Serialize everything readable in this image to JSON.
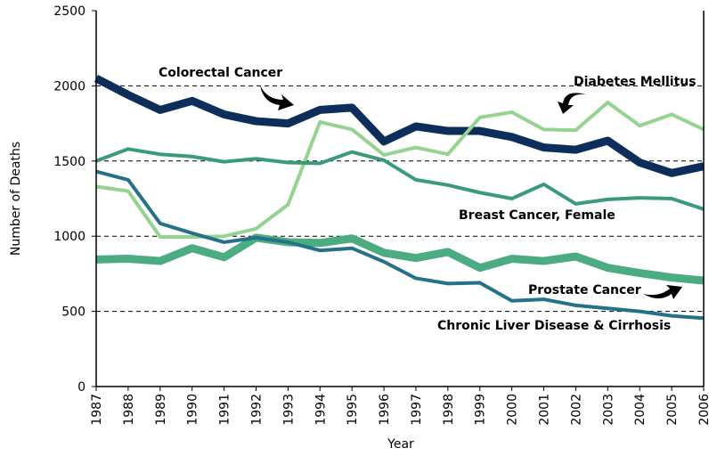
{
  "chart_data": {
    "type": "line",
    "x_label": "Year",
    "y_label": "Number of Deaths",
    "x": [
      1987,
      1988,
      1989,
      1990,
      1991,
      1992,
      1993,
      1994,
      1995,
      1996,
      1997,
      1998,
      1999,
      2000,
      2001,
      2002,
      2003,
      2004,
      2005,
      2006
    ],
    "xlim": [
      1987,
      2006
    ],
    "xticks": [
      1987,
      1988,
      1989,
      1990,
      1991,
      1992,
      1993,
      1994,
      1995,
      1996,
      1997,
      1998,
      1999,
      2000,
      2001,
      2002,
      2003,
      2004,
      2005,
      2006
    ],
    "ylim": [
      0,
      2500
    ],
    "yticks": [
      0,
      500,
      1000,
      1500,
      2000,
      2500
    ],
    "grid": true,
    "series": [
      {
        "name": "Colorectal Cancer",
        "color": "#0d2e5a",
        "values": [
          2050,
          1940,
          1840,
          1900,
          1810,
          1765,
          1750,
          1840,
          1855,
          1630,
          1730,
          1700,
          1700,
          1660,
          1590,
          1575,
          1635,
          1490,
          1420,
          1465
        ]
      },
      {
        "name": "Diabetes Mellitus",
        "color": "#94d390",
        "values": [
          1330,
          1300,
          995,
          995,
          1000,
          1050,
          1210,
          1760,
          1710,
          1540,
          1590,
          1545,
          1790,
          1825,
          1710,
          1705,
          1890,
          1735,
          1810,
          1710
        ]
      },
      {
        "name": "Breast Cancer, Female",
        "color": "#3a9b77",
        "values": [
          1500,
          1580,
          1545,
          1530,
          1495,
          1515,
          1490,
          1485,
          1560,
          1505,
          1375,
          1340,
          1290,
          1250,
          1345,
          1215,
          1245,
          1255,
          1250,
          1180
        ]
      },
      {
        "name": "Prostate Cancer",
        "color": "#4aac80",
        "values": [
          845,
          850,
          835,
          920,
          860,
          990,
          960,
          955,
          985,
          890,
          855,
          895,
          790,
          850,
          835,
          865,
          790,
          755,
          725,
          705
        ]
      },
      {
        "name": "Chronic Liver Disease & Cirrhosis",
        "color": "#24718a",
        "values": [
          1430,
          1375,
          1085,
          1020,
          960,
          990,
          960,
          905,
          920,
          830,
          720,
          685,
          690,
          570,
          580,
          540,
          520,
          500,
          470,
          455
        ]
      }
    ]
  }
}
